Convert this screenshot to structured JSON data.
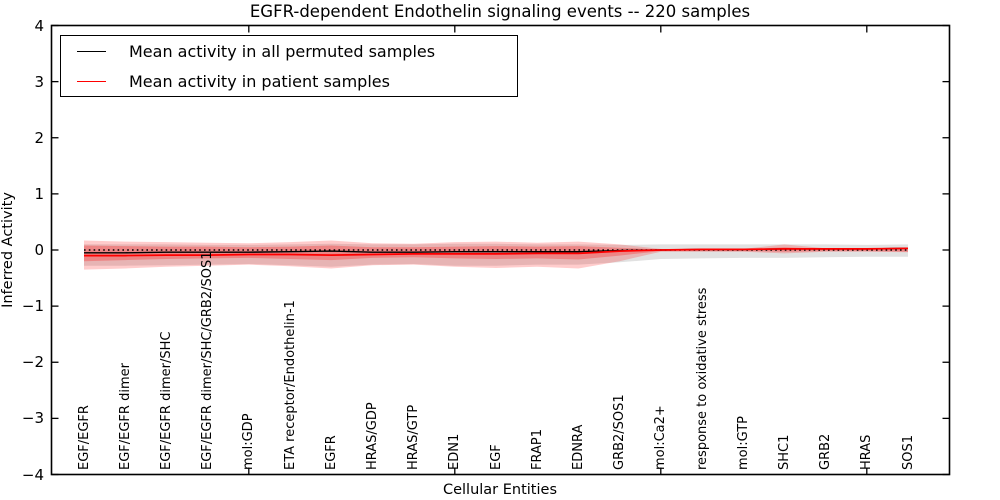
{
  "title": "EGFR-dependent Endothelin signaling events -- 220 samples",
  "chart_data": {
    "type": "line",
    "title": "EGFR-dependent Endothelin signaling events -- 220 samples",
    "xlabel": "Cellular Entities",
    "ylabel": "Inferred Activity",
    "ylim": [
      -4,
      4
    ],
    "ytick_labels": [
      "4",
      "3",
      "2",
      "1",
      "0",
      "−1",
      "−2",
      "−3",
      "−4"
    ],
    "ytick_values": [
      4,
      3,
      2,
      1,
      0,
      -1,
      -2,
      -3,
      -4
    ],
    "x_major_tick_indices": [
      4,
      9,
      14,
      19
    ],
    "grid": false,
    "legend_position": "upper left",
    "categories": [
      "EGF/EGFR",
      "EGF/EGFR dimer",
      "EGF/EGFR dimer/SHC",
      "EGF/EGFR dimer/SHC/GRB2/SOS1",
      "mol:GDP",
      "ETA receptor/Endothelin-1",
      "EGFR",
      "HRAS/GDP",
      "HRAS/GTP",
      "EDN1",
      "EGF",
      "FRAP1",
      "EDNRA",
      "GRB2/SOS1",
      "mol:Ca2+",
      "response to oxidative stress",
      "mol:GTP",
      "SHC1",
      "GRB2",
      "HRAS",
      "SOS1"
    ],
    "series": [
      {
        "name": "Mean activity in all permuted samples",
        "color": "#000000",
        "style": "solid",
        "values": [
          -0.05,
          -0.05,
          -0.04,
          -0.04,
          -0.04,
          -0.03,
          -0.02,
          -0.04,
          -0.04,
          -0.03,
          -0.03,
          -0.03,
          -0.03,
          -0.01,
          0.0,
          0.01,
          0.01,
          0.02,
          0.02,
          0.02,
          0.03
        ]
      },
      {
        "name": "Mean activity in patient samples",
        "color": "#ff0000",
        "style": "solid",
        "values": [
          -0.1,
          -0.1,
          -0.09,
          -0.09,
          -0.08,
          -0.08,
          -0.09,
          -0.08,
          -0.07,
          -0.07,
          -0.07,
          -0.06,
          -0.06,
          -0.02,
          0.0,
          0.01,
          0.01,
          0.02,
          0.02,
          0.02,
          0.03
        ]
      }
    ],
    "zero_reference_line": {
      "value": 0,
      "style": "dotted",
      "color": "#000000"
    },
    "bands": [
      {
        "name": "permuted-samples-spread",
        "color": "rgba(70,70,70,0.16)",
        "upper": [
          0.1,
          0.1,
          0.1,
          0.09,
          0.09,
          0.1,
          0.11,
          0.1,
          0.1,
          0.11,
          0.11,
          0.1,
          0.1,
          0.09,
          0.1,
          0.1,
          0.1,
          0.1,
          0.1,
          0.09,
          0.1
        ],
        "lower": [
          -0.28,
          -0.28,
          -0.27,
          -0.26,
          -0.25,
          -0.27,
          -0.3,
          -0.26,
          -0.25,
          -0.28,
          -0.28,
          -0.26,
          -0.26,
          -0.22,
          -0.16,
          -0.15,
          -0.14,
          -0.14,
          -0.13,
          -0.12,
          -0.12
        ]
      },
      {
        "name": "patient-samples-outer-spread",
        "color": "rgba(255,0,0,0.20)",
        "upper": [
          0.17,
          0.15,
          0.14,
          0.13,
          0.12,
          0.14,
          0.17,
          0.12,
          0.11,
          0.14,
          0.15,
          0.13,
          0.15,
          0.1,
          0.02,
          0.02,
          0.02,
          0.1,
          0.03,
          0.03,
          0.04
        ],
        "lower": [
          -0.35,
          -0.33,
          -0.3,
          -0.28,
          -0.26,
          -0.29,
          -0.33,
          -0.27,
          -0.26,
          -0.3,
          -0.32,
          -0.3,
          -0.33,
          -0.2,
          -0.03,
          -0.03,
          -0.03,
          -0.06,
          -0.03,
          -0.03,
          -0.04
        ]
      },
      {
        "name": "patient-samples-inner-spread",
        "color": "rgba(255,0,0,0.26)",
        "upper": [
          0.08,
          0.07,
          0.06,
          0.06,
          0.05,
          0.06,
          0.08,
          0.05,
          0.05,
          0.06,
          0.07,
          0.06,
          0.07,
          0.04,
          0.01,
          0.01,
          0.01,
          0.05,
          0.02,
          0.02,
          0.02
        ],
        "lower": [
          -0.2,
          -0.18,
          -0.16,
          -0.15,
          -0.14,
          -0.16,
          -0.18,
          -0.14,
          -0.13,
          -0.15,
          -0.16,
          -0.15,
          -0.17,
          -0.1,
          -0.02,
          -0.02,
          -0.02,
          -0.03,
          -0.02,
          -0.02,
          -0.03
        ]
      }
    ],
    "legend": {
      "entries": [
        {
          "label": "Mean activity in all permuted samples",
          "color": "#000000"
        },
        {
          "label": "Mean activity in patient samples",
          "color": "#ff0000"
        }
      ]
    }
  }
}
